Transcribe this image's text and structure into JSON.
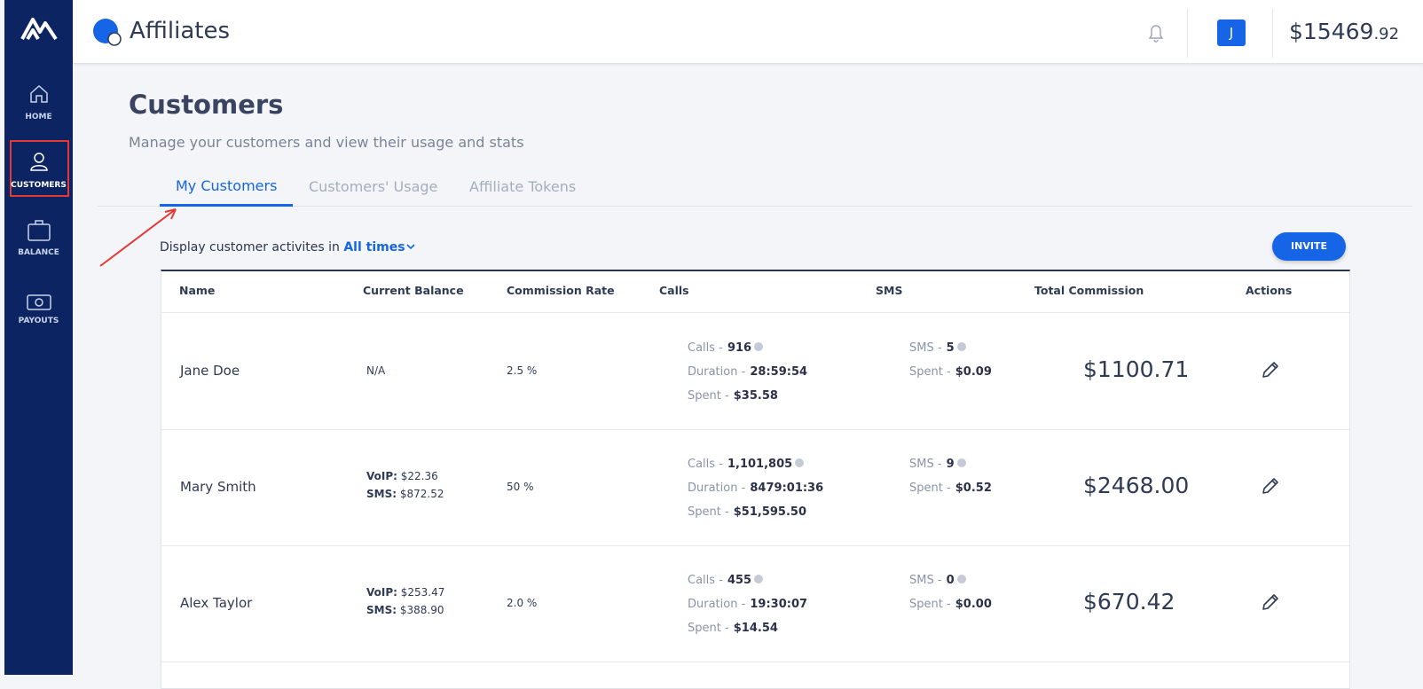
{
  "sidebar": {
    "items": [
      "HOME",
      "CUSTOMERS",
      "BALANCE",
      "PAYOUTS"
    ]
  },
  "header": {
    "title": "Affiliates",
    "avatar": "J",
    "balance_main": "$15469",
    "balance_cents": ".92"
  },
  "page": {
    "title": "Customers",
    "subtitle": "Manage your customers and view their usage and stats",
    "tabs": [
      "My Customers",
      "Customers' Usage",
      "Affiliate Tokens"
    ],
    "filter_label": "Display customer activites in",
    "filter_value": "All times",
    "invite": "INVITE"
  },
  "table": {
    "headers": [
      "Name",
      "Current Balance",
      "Commission Rate",
      "Calls",
      "SMS",
      "Total Commission",
      "Actions"
    ],
    "balance_labels": [
      "VoIP:",
      "SMS:"
    ],
    "call_labels": [
      "Calls -",
      "Duration -",
      "Spent -"
    ],
    "sms_labels": [
      "SMS -",
      "Spent -"
    ],
    "rows": [
      {
        "name": "Jane Doe",
        "balance": "N/A",
        "commission": "2.5 %",
        "calls": "916",
        "duration": "28:59:54",
        "call_spent": "$35.58",
        "sms": "5",
        "sms_spent": "$0.09",
        "total": "$1100.71"
      },
      {
        "name": "Mary Smith",
        "balance": [
          "$22.36",
          "$872.52"
        ],
        "commission": "50 %",
        "calls": "1,101,805",
        "duration": "8479:01:36",
        "call_spent": "$51,595.50",
        "sms": "9",
        "sms_spent": "$0.52",
        "total": "$2468.00"
      },
      {
        "name": "Alex Taylor",
        "balance": [
          "$253.47",
          "$388.90"
        ],
        "commission": "2.0 %",
        "calls": "455",
        "duration": "19:30:07",
        "call_spent": "$14.54",
        "sms": "0",
        "sms_spent": "$0.00",
        "total": "$670.42"
      }
    ]
  }
}
